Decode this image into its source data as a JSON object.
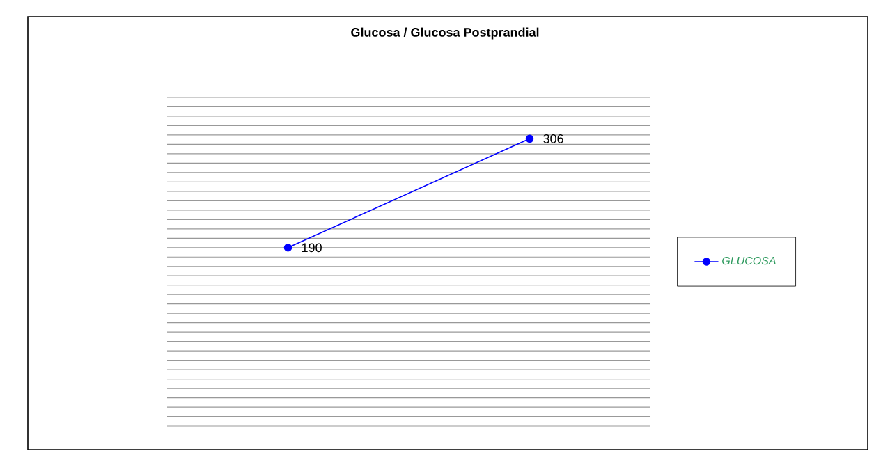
{
  "chart_data": {
    "type": "line",
    "title": "Glucosa / Glucosa Postprandial",
    "categories": [
      null,
      null
    ],
    "series": [
      {
        "name": "GLUCOSA",
        "color": "#0000ff",
        "values": [
          190,
          306
        ]
      }
    ],
    "ylim": [
      0,
      350
    ],
    "yticks": [
      {
        "value": 0,
        "label": null
      },
      {
        "value": 10,
        "label": null
      },
      {
        "value": 20,
        "label": null
      },
      {
        "value": 30,
        "label": null
      },
      {
        "value": 40,
        "label": null
      },
      {
        "value": 50,
        "label": null
      },
      {
        "value": 60,
        "label": null
      },
      {
        "value": 70,
        "label": null
      },
      {
        "value": 80,
        "label": null
      },
      {
        "value": 90,
        "label": null
      },
      {
        "value": 100,
        "label": null
      },
      {
        "value": 110,
        "label": null
      },
      {
        "value": 120,
        "label": null
      },
      {
        "value": 130,
        "label": null
      },
      {
        "value": 140,
        "label": null
      },
      {
        "value": 150,
        "label": null
      },
      {
        "value": 160,
        "label": null
      },
      {
        "value": 170,
        "label": null
      },
      {
        "value": 180,
        "label": null
      },
      {
        "value": 190,
        "label": null
      },
      {
        "value": 200,
        "label": null
      },
      {
        "value": 210,
        "label": null
      },
      {
        "value": 220,
        "label": null
      },
      {
        "value": 230,
        "label": null
      },
      {
        "value": 240,
        "label": null
      },
      {
        "value": 250,
        "label": null
      },
      {
        "value": 260,
        "label": null
      },
      {
        "value": 270,
        "label": null
      },
      {
        "value": 280,
        "label": null
      },
      {
        "value": 290,
        "label": null
      },
      {
        "value": 300,
        "label": null
      },
      {
        "value": 310,
        "label": null
      },
      {
        "value": 320,
        "label": null
      },
      {
        "value": 330,
        "label": null
      },
      {
        "value": 340,
        "label": null
      },
      {
        "value": 350,
        "label": null
      }
    ],
    "grid": "y",
    "legend": "right",
    "marker": "circle",
    "line_style": "solid",
    "data_labels": true
  }
}
